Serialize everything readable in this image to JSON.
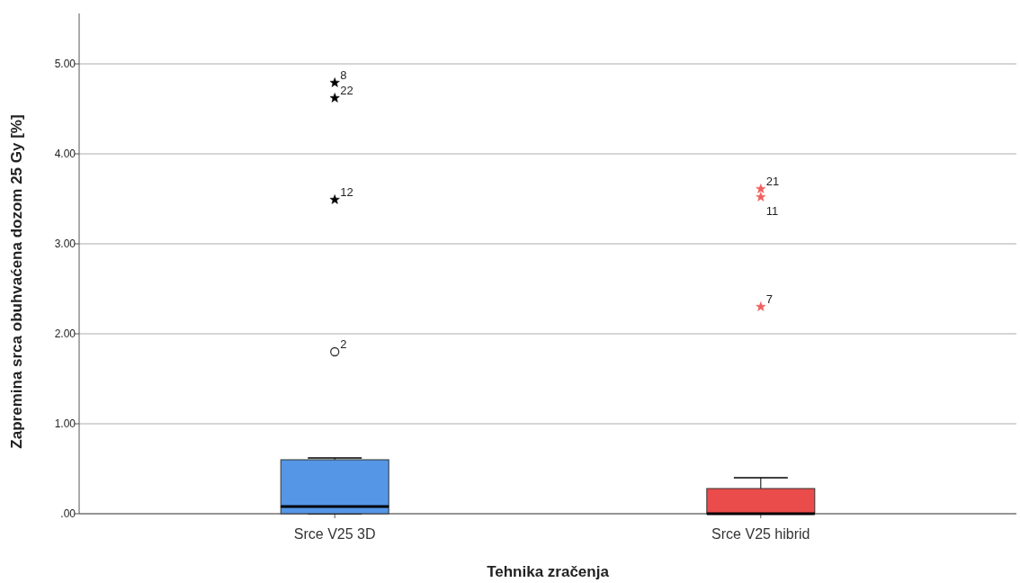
{
  "chart_data": {
    "type": "box",
    "xlabel": "Tehnika zračenja",
    "ylabel": "Zapremina srca obuhvaćena dozom 25 Gy [%]",
    "categories": [
      "Srce V25 3D",
      "Srce V25 hibrid"
    ],
    "colors": [
      "#5596e6",
      "#ea4b4b"
    ],
    "boxes": [
      {
        "low": 0,
        "q1": 0,
        "median": 0.08,
        "q3": 0.6,
        "high": 0.62
      },
      {
        "low": 0,
        "q1": 0,
        "median": 0,
        "q3": 0.28,
        "high": 0.4
      }
    ],
    "series": [
      {
        "type": "scatter",
        "marker": "star",
        "x": [
          "Srce V25 3D",
          "Srce V25 3D",
          "Srce V25 3D",
          "Srce V25 hibrid",
          "Srce V25 hibrid",
          "Srce V25 hibrid"
        ],
        "values": [
          4.79,
          4.62,
          3.49,
          3.61,
          3.52,
          2.3
        ],
        "colors": [
          "#000000",
          "#000000",
          "#000000",
          "#f06060",
          "#f06060",
          "#f06060"
        ]
      },
      {
        "type": "scatter",
        "marker": "circle",
        "x": [
          "Srce V25 3D"
        ],
        "values": [
          1.8
        ],
        "colors": [
          "#333333"
        ]
      }
    ],
    "annotations": [
      {
        "text": "2",
        "x": "Srce V25 3D",
        "y": 1.8
      },
      {
        "text": "8",
        "x": "Srce V25 3D",
        "y": 4.79
      },
      {
        "text": "22",
        "x": "Srce V25 3D",
        "y": 4.62
      },
      {
        "text": "12",
        "x": "Srce V25 3D",
        "y": 3.49
      },
      {
        "text": "21",
        "x": "Srce V25 hibrid",
        "y": 3.61
      },
      {
        "text": "11",
        "x": "Srce V25 hibrid",
        "y": 3.52
      },
      {
        "text": "7",
        "x": "Srce V25 hibrid",
        "y": 2.3
      }
    ],
    "ylim": [
      0,
      5.56
    ],
    "yticks": [
      {
        "value": 0,
        "label": ".00"
      },
      {
        "value": 1,
        "label": "1.00"
      },
      {
        "value": 2,
        "label": "2.00"
      },
      {
        "value": 3,
        "label": "3.00"
      },
      {
        "value": 4,
        "label": "4.00"
      },
      {
        "value": 5,
        "label": "5.00"
      }
    ],
    "grid": "y"
  }
}
